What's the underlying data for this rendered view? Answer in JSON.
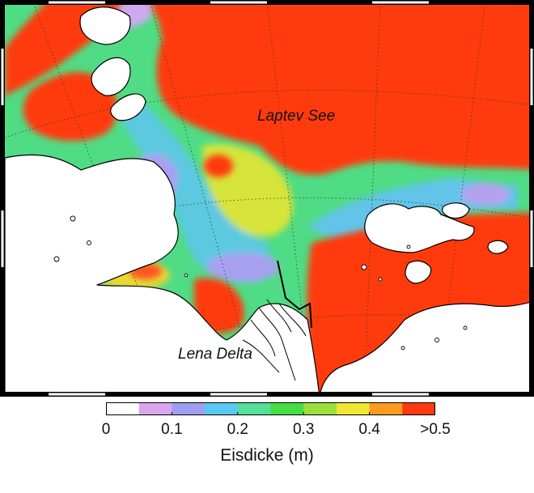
{
  "map": {
    "labels": {
      "sea": "Laptev See",
      "delta": "Lena Delta"
    }
  },
  "colorbar": {
    "title": "Eisdicke (m)",
    "ticks": [
      "0",
      "0.1",
      "0.2",
      "0.3",
      "0.4",
      ">0.5"
    ],
    "tick_values": [
      0,
      0.1,
      0.2,
      0.3,
      0.4,
      0.5
    ],
    "range": [
      0,
      0.5
    ],
    "colors": [
      "#ffffff",
      "#d9a6ee",
      "#9e9ef2",
      "#59c8f2",
      "#52e09a",
      "#44dd44",
      "#9be03a",
      "#f0e830",
      "#ff9a20",
      "#ff3a10"
    ]
  },
  "colors": {
    "thick_ice": "#ff3a10",
    "medium_ice": "#52e085",
    "thin_ice": "#9e9ef2",
    "land": "#ffffff"
  }
}
